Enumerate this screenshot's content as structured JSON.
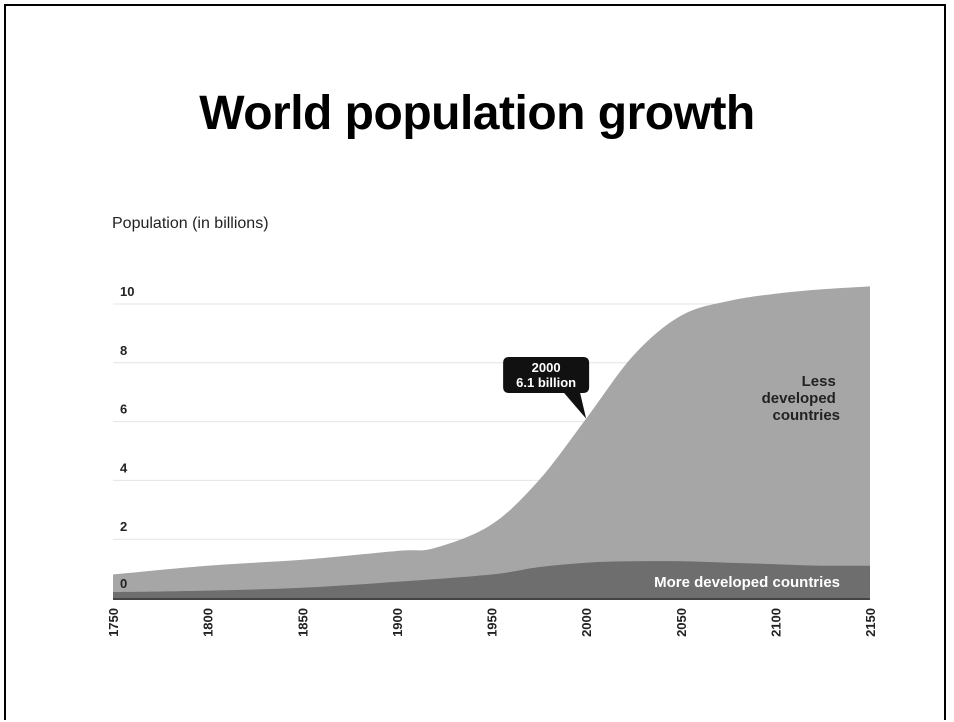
{
  "chart_data": {
    "type": "area",
    "title": "World population growth",
    "ylabel": "Population (in billions)",
    "xlabel": "",
    "xlim": [
      1750,
      2150
    ],
    "ylim": [
      0,
      11
    ],
    "yticks": [
      0,
      2,
      4,
      6,
      8,
      10
    ],
    "xticks": [
      1750,
      1800,
      1850,
      1900,
      1950,
      2000,
      2050,
      2100,
      2150
    ],
    "stacked": true,
    "series": [
      {
        "name": "More developed countries",
        "color": "#6e6e6e",
        "x": [
          1750,
          1800,
          1850,
          1900,
          1950,
          1975,
          2000,
          2025,
          2050,
          2075,
          2100,
          2125,
          2150
        ],
        "values": [
          0.2,
          0.25,
          0.35,
          0.55,
          0.8,
          1.05,
          1.2,
          1.25,
          1.25,
          1.2,
          1.15,
          1.1,
          1.1
        ]
      },
      {
        "name": "Less developed countries",
        "color": "#a6a6a6",
        "x": [
          1750,
          1800,
          1850,
          1900,
          1920,
          1950,
          1975,
          2000,
          2025,
          2050,
          2075,
          2100,
          2125,
          2150
        ],
        "values": [
          0.6,
          0.85,
          0.95,
          1.05,
          1.05,
          1.7,
          2.95,
          4.9,
          7.0,
          8.35,
          8.9,
          9.2,
          9.4,
          9.5
        ]
      }
    ],
    "region_labels": {
      "less_developed": [
        "Less",
        "developed",
        "countries"
      ],
      "more_developed": "More developed countries"
    },
    "annotation": {
      "x": 2000,
      "y": 6.1,
      "year": "2000",
      "value": "6.1 billion"
    },
    "grid": true,
    "legend": "none"
  }
}
